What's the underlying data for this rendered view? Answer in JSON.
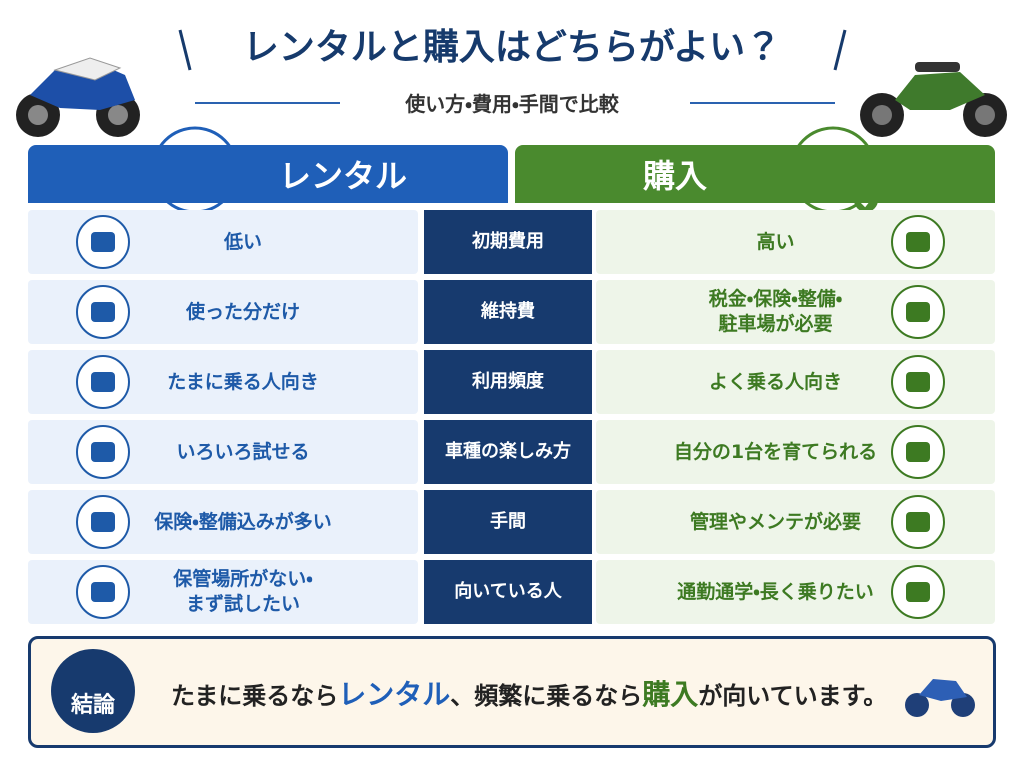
{
  "header": {
    "title": "レンタルと購入はどちらがよい？",
    "subtitle": "使い方・費用・手間で比較"
  },
  "columns": {
    "rental": "レンタル",
    "purchase": "購入"
  },
  "rows": [
    {
      "label": "初期費用",
      "rental": "低い",
      "purchase": "高い"
    },
    {
      "label": "維持費",
      "rental": "使った分だけ",
      "purchase": "税金・保険・整備・\n駐車場が必要"
    },
    {
      "label": "利用頻度",
      "rental": "たまに乗る人向き",
      "purchase": "よく乗る人向き"
    },
    {
      "label": "車種の楽しみ方",
      "rental": "いろいろ試せる",
      "purchase": "自分の1台を育てられる"
    },
    {
      "label": "手間",
      "rental": "保険・整備込みが多い",
      "purchase": "管理やメンテが必要"
    },
    {
      "label": "向いている人",
      "rental": "保管場所がない・\nまず試したい",
      "purchase": "通勤通学・長く乗りたい"
    }
  ],
  "conclusion": {
    "label": "結論",
    "parts": [
      "たまに乗るなら",
      "レンタル",
      "、頻繁に乗るなら",
      "購入",
      "が向いています。"
    ]
  }
}
